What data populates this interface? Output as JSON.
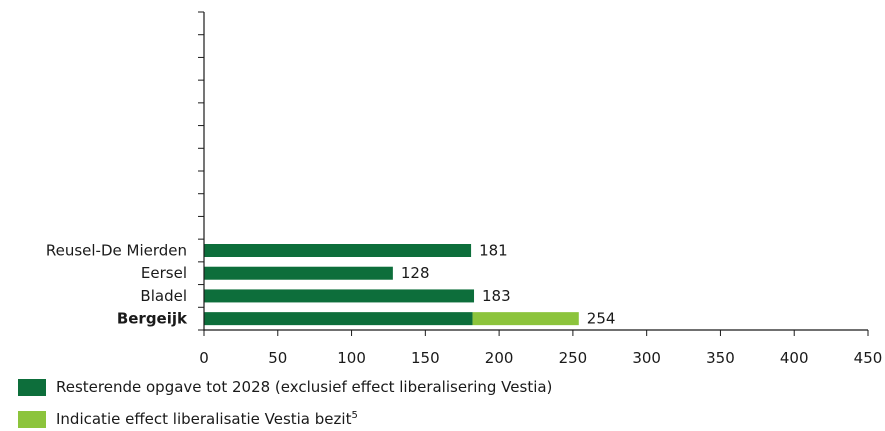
{
  "chart_data": {
    "type": "bar",
    "orientation": "horizontal",
    "stacked": true,
    "categories": [
      "Reusel-De Mierden",
      "Eersel",
      "Bladel",
      "Bergeijk"
    ],
    "highlight_category": "Bergeijk",
    "series": [
      {
        "name": "Resterende opgave tot 2028 (exclusief effect liberalisering Vestia)",
        "color": "#0d6e3b",
        "values": [
          181,
          128,
          183,
          182
        ]
      },
      {
        "name": "Indicatie effect liberalisatie Vestia bezit",
        "name_footnote": "5",
        "color": "#8cc43c",
        "values": [
          0,
          0,
          0,
          72
        ]
      }
    ],
    "totals": [
      "181",
      "128",
      "183",
      "254"
    ],
    "xlim": [
      0,
      450
    ],
    "xticks": [
      "0",
      "50",
      "100",
      "150",
      "200",
      "250",
      "300",
      "350",
      "400",
      "450"
    ],
    "empty_category_slots_above": 10,
    "grid": false,
    "legend_position": "bottom-left"
  }
}
